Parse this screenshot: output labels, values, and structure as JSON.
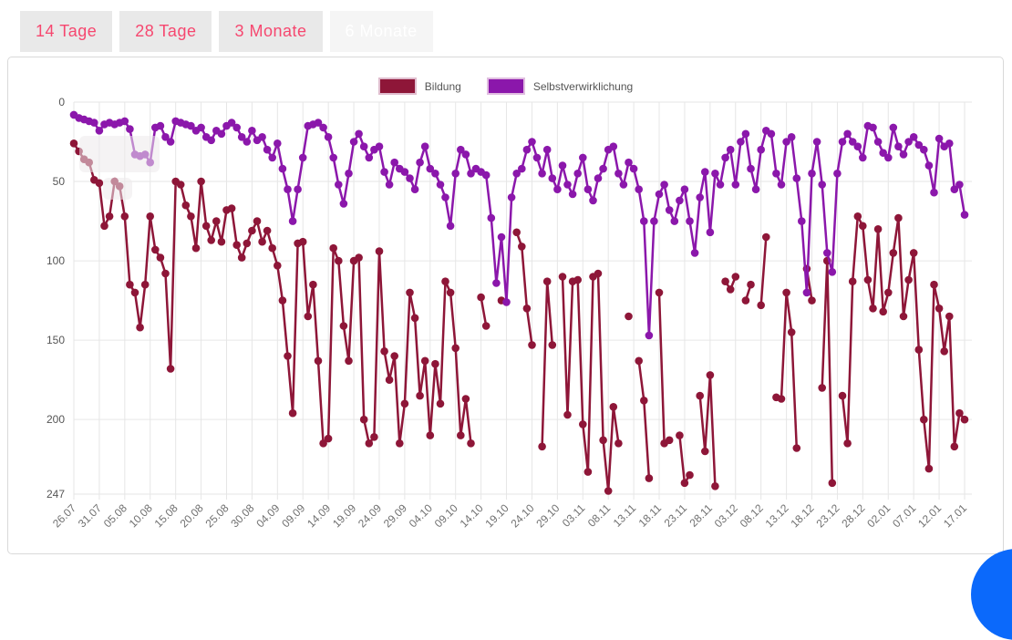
{
  "tabs": [
    {
      "label": "14 Tage",
      "active": false
    },
    {
      "label": "28 Tage",
      "active": false
    },
    {
      "label": "3 Monate",
      "active": false
    },
    {
      "label": "6 Monate",
      "active": true
    }
  ],
  "tab_colors": {
    "inactive_bg": "#e9e9e9",
    "active_bg": "#f5f5f5",
    "text": "#f6476f",
    "active_text": "#ffffff"
  },
  "fab": {
    "color": "#0b69fb"
  },
  "chart_data": {
    "type": "line",
    "y_inverted": true,
    "ylim": [
      0,
      247
    ],
    "y_ticks": [
      0,
      50,
      100,
      150,
      200,
      247
    ],
    "x_tick_step": 5,
    "x_tick_labels": [
      "26.07",
      "31.07",
      "05.08",
      "10.08",
      "15.08",
      "20.08",
      "25.08",
      "30.08",
      "04.09",
      "09.09",
      "14.09",
      "19.09",
      "24.09",
      "29.09",
      "04.10",
      "09.10",
      "14.10",
      "19.10",
      "24.10",
      "29.10",
      "03.11",
      "08.11",
      "13.11",
      "18.11",
      "23.11",
      "28.11",
      "03.12",
      "08.12",
      "13.12",
      "18.12",
      "23.12",
      "28.12",
      "02.01",
      "07.01",
      "12.01",
      "17.01"
    ],
    "grid": true,
    "legend_position": "top-center",
    "grid_color": "#e6e6e6",
    "tick_label_color": "#707070",
    "series": [
      {
        "name": "Bildung",
        "color": "#8e1638",
        "values": [
          26,
          31,
          36,
          38,
          49,
          51,
          78,
          72,
          50,
          53,
          72,
          115,
          120,
          142,
          115,
          72,
          93,
          98,
          108,
          168,
          50,
          52,
          65,
          72,
          92,
          50,
          78,
          87,
          75,
          88,
          68,
          67,
          90,
          98,
          89,
          81,
          75,
          88,
          81,
          92,
          103,
          125,
          160,
          196,
          89,
          88,
          135,
          115,
          163,
          215,
          212,
          92,
          100,
          141,
          163,
          100,
          98,
          200,
          215,
          211,
          94,
          157,
          175,
          160,
          215,
          190,
          120,
          136,
          185,
          163,
          210,
          165,
          190,
          113,
          120,
          155,
          210,
          187,
          215,
          null,
          123,
          141,
          null,
          null,
          125,
          null,
          null,
          82,
          91,
          130,
          153,
          null,
          217,
          113,
          153,
          null,
          110,
          197,
          113,
          112,
          203,
          233,
          110,
          108,
          213,
          245,
          192,
          215,
          null,
          135,
          null,
          163,
          188,
          237,
          null,
          120,
          215,
          213,
          null,
          210,
          240,
          235,
          null,
          185,
          220,
          172,
          242,
          null,
          113,
          118,
          110,
          null,
          125,
          115,
          null,
          128,
          85,
          null,
          186,
          187,
          120,
          145,
          218,
          null,
          105,
          125,
          null,
          180,
          100,
          240,
          null,
          185,
          215,
          113,
          72,
          78,
          112,
          130,
          80,
          132,
          120,
          95,
          73,
          135,
          112,
          95,
          156,
          200,
          231,
          115,
          130,
          157,
          135,
          217,
          196,
          200
        ]
      },
      {
        "name": "Selbstverwirklichung",
        "color": "#8b17ab",
        "values": [
          8,
          10,
          11,
          12,
          13,
          18,
          14,
          13,
          14,
          13,
          12,
          17,
          33,
          34,
          33,
          38,
          16,
          15,
          22,
          25,
          12,
          13,
          14,
          15,
          18,
          16,
          22,
          24,
          18,
          20,
          15,
          13,
          16,
          22,
          25,
          18,
          24,
          22,
          30,
          35,
          26,
          42,
          55,
          75,
          55,
          35,
          15,
          14,
          13,
          16,
          22,
          35,
          52,
          64,
          45,
          25,
          20,
          28,
          35,
          30,
          28,
          44,
          52,
          38,
          42,
          44,
          48,
          55,
          38,
          28,
          42,
          45,
          52,
          60,
          78,
          45,
          30,
          33,
          45,
          42,
          44,
          46,
          73,
          114,
          85,
          126,
          60,
          45,
          42,
          30,
          25,
          35,
          45,
          30,
          48,
          55,
          40,
          52,
          58,
          45,
          35,
          55,
          62,
          48,
          42,
          30,
          28,
          45,
          52,
          38,
          42,
          55,
          75,
          147,
          75,
          58,
          52,
          68,
          75,
          62,
          55,
          75,
          95,
          60,
          44,
          82,
          45,
          52,
          35,
          30,
          52,
          25,
          20,
          42,
          55,
          30,
          18,
          20,
          45,
          52,
          25,
          22,
          48,
          75,
          120,
          45,
          25,
          52,
          95,
          107,
          45,
          25,
          20,
          25,
          28,
          35,
          15,
          16,
          25,
          32,
          35,
          16,
          28,
          33,
          25,
          22,
          27,
          30,
          40,
          57,
          23,
          28,
          26,
          55,
          52,
          71
        ]
      }
    ]
  }
}
